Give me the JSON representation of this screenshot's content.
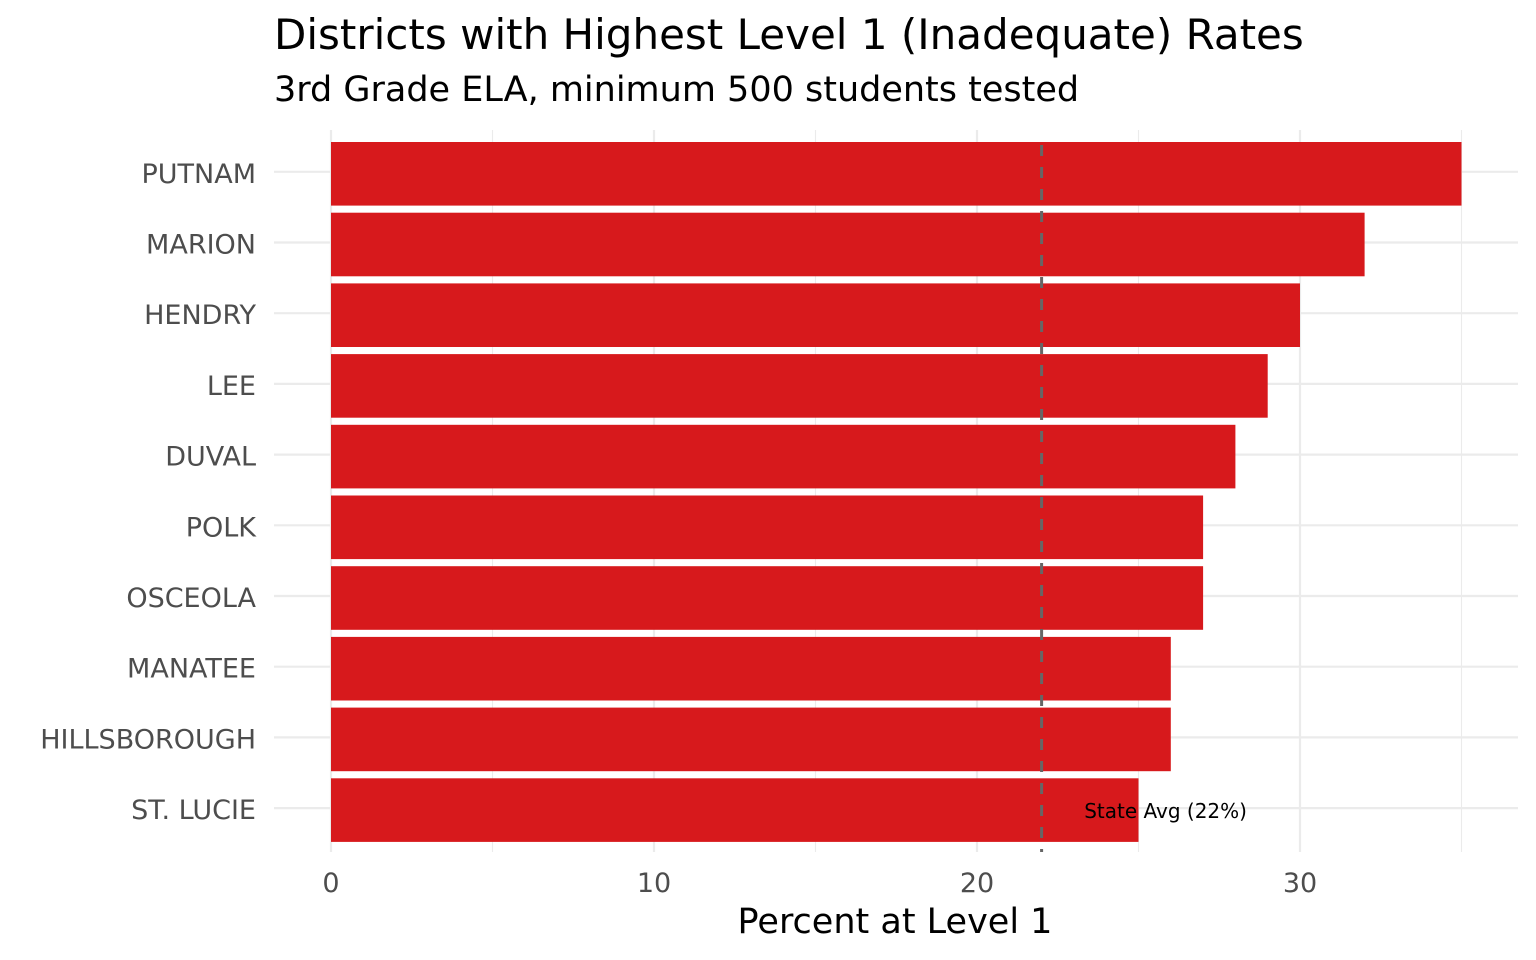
{
  "chart_data": {
    "type": "bar",
    "orientation": "horizontal",
    "title": "Districts with Highest Level 1 (Inadequate) Rates",
    "subtitle": "3rd Grade ELA, minimum 500 students tested",
    "xlabel": "Percent at Level 1",
    "ylabel": "",
    "categories": [
      "PUTNAM",
      "MARION",
      "HENDRY",
      "LEE",
      "DUVAL",
      "POLK",
      "OSCEOLA",
      "MANATEE",
      "HILLSBOROUGH",
      "ST. LUCIE"
    ],
    "values": [
      35,
      32,
      30,
      29,
      28,
      27,
      27,
      26,
      26,
      25
    ],
    "xlim": [
      0,
      35
    ],
    "xticks": [
      0,
      10,
      20,
      30
    ],
    "xtick_labels": [
      "0",
      "10",
      "20",
      "30"
    ],
    "grid": true,
    "bar_color": "#d7191c",
    "reference_line": {
      "value": 22,
      "label": "State Avg (22%)",
      "style": "dashed",
      "color": "#666666"
    }
  }
}
